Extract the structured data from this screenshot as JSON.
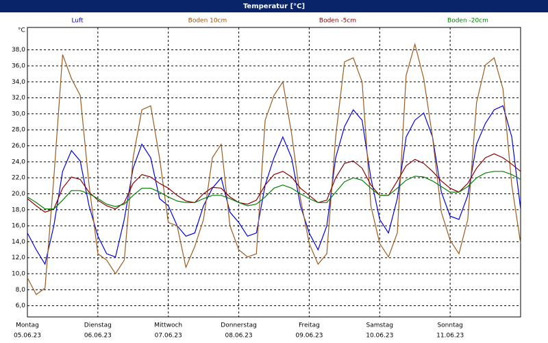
{
  "chart_data": {
    "type": "line",
    "title": "Temperatur [°C]",
    "y_label": "°C",
    "grid": true,
    "xlim": [
      0,
      7
    ],
    "xticks": [
      0,
      1,
      2,
      3,
      4,
      5,
      6
    ],
    "x_labels": [
      {
        "day": "Montag",
        "date": "05.06.23"
      },
      {
        "day": "Dienstag",
        "date": "06.06.23"
      },
      {
        "day": "Mittwoch",
        "date": "07.06.23"
      },
      {
        "day": "Donnerstag",
        "date": "08.06.23"
      },
      {
        "day": "Freitag",
        "date": "09.06.23"
      },
      {
        "day": "Samstag",
        "date": "10.06.23"
      },
      {
        "day": "Sonntag",
        "date": "11.06.23"
      }
    ],
    "ylim": [
      4.6,
      40.8
    ],
    "yticks": [
      {
        "value": 6,
        "label": "6,0"
      },
      {
        "value": 8,
        "label": "8,0"
      },
      {
        "value": 10,
        "label": "10,0"
      },
      {
        "value": 12,
        "label": "12,0"
      },
      {
        "value": 14,
        "label": "14,0"
      },
      {
        "value": 16,
        "label": "16,0"
      },
      {
        "value": 18,
        "label": "18,0"
      },
      {
        "value": 20,
        "label": "20,0"
      },
      {
        "value": 22,
        "label": "22,0"
      },
      {
        "value": 24,
        "label": "24,0"
      },
      {
        "value": 26,
        "label": "26,0"
      },
      {
        "value": 28,
        "label": "28,0"
      },
      {
        "value": 30,
        "label": "30,0"
      },
      {
        "value": 32,
        "label": "32,0"
      },
      {
        "value": 34,
        "label": "34,0"
      },
      {
        "value": 36,
        "label": "36,0"
      },
      {
        "value": 38,
        "label": "38,0"
      }
    ],
    "x": [
      0,
      0.125,
      0.25,
      0.375,
      0.5,
      0.625,
      0.75,
      0.875,
      1,
      1.125,
      1.25,
      1.375,
      1.5,
      1.625,
      1.75,
      1.875,
      2,
      2.125,
      2.25,
      2.375,
      2.5,
      2.625,
      2.75,
      2.875,
      3,
      3.125,
      3.25,
      3.375,
      3.5,
      3.625,
      3.75,
      3.875,
      4,
      4.125,
      4.25,
      4.375,
      4.5,
      4.625,
      4.75,
      4.875,
      5,
      5.125,
      5.25,
      5.375,
      5.5,
      5.625,
      5.75,
      5.875,
      6,
      6.125,
      6.25,
      6.375,
      6.5,
      6.625,
      6.75,
      6.875,
      7
    ],
    "series": [
      {
        "name": "Luft",
        "color": "#0000e0",
        "label_color": "#0000c0",
        "values": [
          15.1,
          13,
          11.2,
          16,
          22.8,
          25.4,
          24.1,
          18.5,
          14.7,
          12.5,
          12.1,
          16.8,
          23.2,
          26.2,
          24.5,
          19.4,
          18.5,
          16,
          14.7,
          15.1,
          18.5,
          20.7,
          22,
          17.7,
          16.4,
          14.7,
          15.1,
          21.1,
          24.5,
          27.1,
          24.5,
          18.5,
          15.1,
          13,
          16,
          24.5,
          28.4,
          30.5,
          29.2,
          22,
          16.8,
          15.1,
          19.4,
          27.1,
          29.2,
          30.1,
          27.1,
          20.2,
          17.2,
          16.8,
          19.8,
          26.2,
          28.8,
          30.5,
          31,
          27.1,
          18.1
        ]
      },
      {
        "name": "Boden 10cm",
        "color": "#9c5a1e",
        "label_color": "#a05000",
        "values": [
          9.5,
          7.4,
          8.2,
          22,
          37.4,
          34.4,
          32.3,
          21.1,
          12.5,
          11.7,
          10,
          11.7,
          24.5,
          30.5,
          31,
          24.5,
          16.4,
          16,
          10.8,
          13.4,
          16.8,
          24.5,
          26.2,
          16,
          13,
          12.1,
          12.5,
          29.2,
          32.3,
          34,
          27.5,
          19.4,
          13.8,
          11.2,
          12.5,
          27.1,
          36.5,
          37,
          34,
          18.5,
          13.8,
          12.1,
          15.1,
          34.8,
          38.7,
          34.4,
          27.1,
          17.7,
          14.2,
          12.5,
          16.8,
          31.4,
          36.1,
          37,
          33.1,
          21.1,
          13.8
        ]
      },
      {
        "name": "Boden -5cm",
        "color": "#8b0000",
        "label_color": "#800000",
        "values": [
          19.4,
          18.5,
          17.7,
          18.1,
          20.7,
          22.1,
          21.8,
          20.2,
          19.2,
          18.5,
          18.1,
          18.9,
          21.3,
          22.4,
          22.1,
          21.3,
          20.7,
          19.8,
          19.1,
          18.9,
          20,
          20.8,
          20.7,
          19.6,
          18.9,
          18.7,
          19.2,
          21.1,
          22.4,
          22.8,
          22.1,
          20.7,
          19.8,
          18.9,
          19.2,
          22,
          23.8,
          24.1,
          23.2,
          21.1,
          19.8,
          19.8,
          21.6,
          23.5,
          24.3,
          23.8,
          22.8,
          21.6,
          20.7,
          20.2,
          21.3,
          23.2,
          24.5,
          25,
          24.5,
          23.7,
          22.8
        ]
      },
      {
        "name": "Boden -20cm",
        "color": "#008000",
        "label_color": "#008000",
        "values": [
          19.6,
          18.9,
          18.1,
          18.1,
          19.2,
          20.4,
          20.4,
          20,
          19.4,
          18.7,
          18.4,
          18.7,
          19.8,
          20.7,
          20.7,
          20.2,
          19.6,
          19.1,
          18.9,
          18.9,
          19.4,
          19.8,
          19.8,
          19.4,
          18.9,
          18.5,
          18.7,
          19.6,
          20.7,
          21.1,
          20.7,
          20,
          19.4,
          18.9,
          18.9,
          20.2,
          21.5,
          22,
          21.7,
          20.7,
          19.8,
          19.8,
          20.7,
          21.7,
          22.2,
          22.1,
          21.6,
          20.9,
          20.2,
          20.2,
          20.9,
          22,
          22.6,
          22.8,
          22.8,
          22.4,
          21.8
        ]
      }
    ]
  }
}
